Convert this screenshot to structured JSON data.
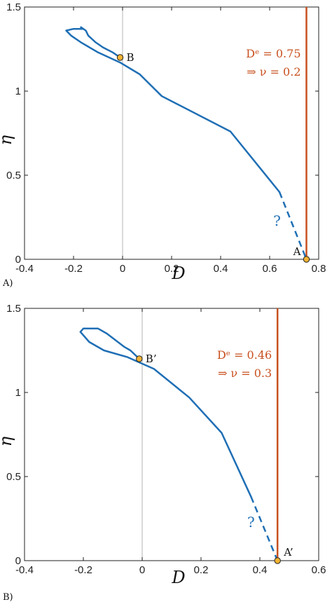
{
  "colors": {
    "trajectory": "#1f6fb5",
    "vertical": "#c8501f",
    "center": "#c0c0c0",
    "marker": "#f2b233",
    "axis": "#222222"
  },
  "chart_data": [
    {
      "type": "line",
      "panel_label": "A)",
      "xlabel": "D",
      "ylabel": "η",
      "xlim": [
        -0.4,
        0.8
      ],
      "ylim": [
        0,
        1.5
      ],
      "xticks": [
        -0.4,
        -0.2,
        0,
        0.2,
        0.4,
        0.6,
        0.8
      ],
      "xtick_labels": [
        "-0.4",
        "-0.2",
        "0",
        "0.2",
        "0.4",
        "0.6",
        "0.8"
      ],
      "yticks": [
        0,
        0.5,
        1,
        1.5
      ],
      "ytick_labels": [
        "0",
        "0.5",
        "1",
        "1.5"
      ],
      "vertical_line_x": 0.75,
      "center_line_x": 0,
      "annotation_line1": "Dᵉ = 0.75",
      "annotation_line2": "⇒ ν = 0.2",
      "question_mark": "?",
      "question_at": [
        0.63,
        0.2
      ],
      "solid_path": [
        [
          -0.01,
          1.2
        ],
        [
          -0.04,
          1.23
        ],
        [
          -0.08,
          1.26
        ],
        [
          -0.11,
          1.29
        ],
        [
          -0.14,
          1.33
        ],
        [
          -0.15,
          1.36
        ],
        [
          -0.17,
          1.38
        ],
        [
          -0.16,
          1.37
        ],
        [
          -0.2,
          1.37
        ],
        [
          -0.23,
          1.36
        ],
        [
          -0.21,
          1.33
        ],
        [
          -0.17,
          1.29
        ],
        [
          -0.1,
          1.23
        ],
        [
          -0.01,
          1.17
        ],
        [
          0.07,
          1.1
        ],
        [
          0.16,
          0.97
        ],
        [
          0.44,
          0.76
        ],
        [
          0.64,
          0.4
        ]
      ],
      "dashed_path": [
        [
          0.64,
          0.4
        ],
        [
          0.75,
          0.0
        ]
      ],
      "points": [
        {
          "label": "B",
          "x": -0.01,
          "y": 1.2
        },
        {
          "label": "A",
          "x": 0.75,
          "y": 0.0
        }
      ]
    },
    {
      "type": "line",
      "panel_label": "B)",
      "xlabel": "D",
      "ylabel": "η",
      "xlim": [
        -0.4,
        0.6
      ],
      "ylim": [
        0,
        1.5
      ],
      "xticks": [
        -0.4,
        -0.2,
        0,
        0.2,
        0.4,
        0.6
      ],
      "xtick_labels": [
        "-0.4",
        "-0.2",
        "0",
        "0.2",
        "0.4",
        "0.6"
      ],
      "yticks": [
        0,
        0.5,
        1,
        1.5
      ],
      "ytick_labels": [
        "0",
        "0.5",
        "1",
        "1.5"
      ],
      "vertical_line_x": 0.46,
      "center_line_x": 0,
      "annotation_line1": "Dᵉ = 0.46",
      "annotation_line2": "⇒ ν = 0.3",
      "question_mark": "?",
      "question_at": [
        0.37,
        0.2
      ],
      "solid_path": [
        [
          -0.01,
          1.2
        ],
        [
          -0.04,
          1.25
        ],
        [
          -0.06,
          1.27
        ],
        [
          -0.09,
          1.31
        ],
        [
          -0.12,
          1.35
        ],
        [
          -0.15,
          1.38
        ],
        [
          -0.2,
          1.38
        ],
        [
          -0.21,
          1.36
        ],
        [
          -0.18,
          1.3
        ],
        [
          -0.13,
          1.25
        ],
        [
          -0.05,
          1.21
        ],
        [
          0.04,
          1.14
        ],
        [
          0.16,
          0.97
        ],
        [
          0.27,
          0.76
        ],
        [
          0.37,
          0.38
        ]
      ],
      "dashed_path": [
        [
          0.37,
          0.38
        ],
        [
          0.46,
          0.0
        ]
      ],
      "points": [
        {
          "label": "B’",
          "x": -0.01,
          "y": 1.2
        },
        {
          "label": "A’",
          "x": 0.46,
          "y": 0.0
        }
      ]
    }
  ]
}
